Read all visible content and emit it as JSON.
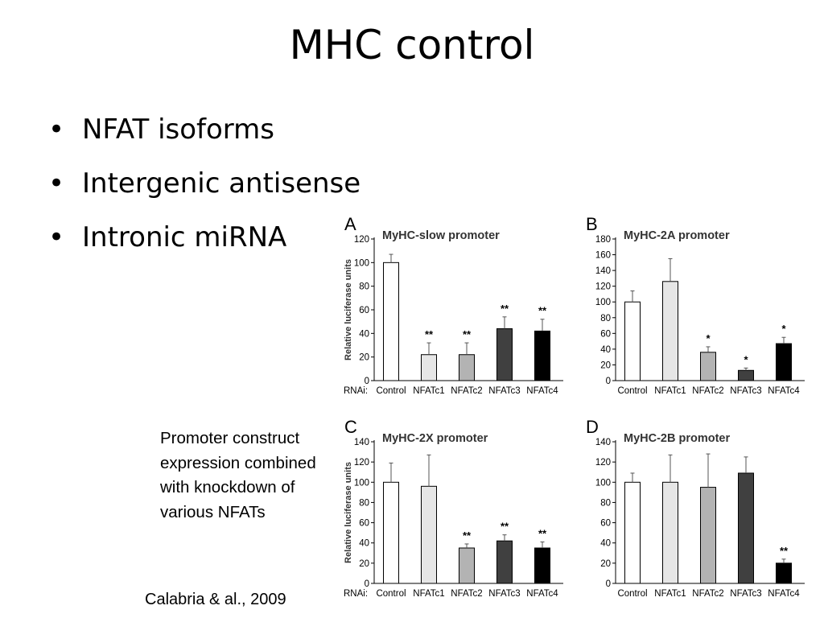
{
  "slide": {
    "title": "MHC control",
    "bullets": [
      "NFAT isoforms",
      "Intergenic antisense",
      "Intronic miRNA"
    ],
    "caption": "Promoter construct expression combined with knockdown of various NFATs",
    "citation": "Calabria & al., 2009"
  },
  "colors": {
    "Control": "#ffffff",
    "NFATc1": "#e6e6e6",
    "NFATc2": "#b3b3b3",
    "NFATc3": "#404040",
    "NFATc4": "#000000"
  },
  "chart_data": [
    {
      "type": "bar",
      "panel_letter": "A",
      "title": "MyHC-slow promoter",
      "ylabel": "Relative luciferase units",
      "x_prefix": "RNAi:",
      "categories": [
        "Control",
        "NFATc1",
        "NFATc2",
        "NFATc3",
        "NFATc4"
      ],
      "values": [
        100,
        22,
        22,
        44,
        42
      ],
      "errors": [
        7,
        10,
        10,
        10,
        10
      ],
      "significance": [
        "",
        "**",
        "**",
        "**",
        "**"
      ],
      "ylim": [
        0,
        120
      ],
      "yticks": [
        0,
        20,
        40,
        60,
        80,
        100,
        120
      ]
    },
    {
      "type": "bar",
      "panel_letter": "B",
      "title": "MyHC-2A promoter",
      "ylabel": "",
      "x_prefix": "",
      "categories": [
        "Control",
        "NFATc1",
        "NFATc2",
        "NFATc3",
        "NFATc4"
      ],
      "values": [
        100,
        126,
        36,
        13,
        47
      ],
      "errors": [
        14,
        29,
        7,
        3,
        8
      ],
      "significance": [
        "",
        "",
        "*",
        "*",
        "*"
      ],
      "ylim": [
        0,
        180
      ],
      "yticks": [
        0,
        20,
        40,
        60,
        80,
        100,
        120,
        140,
        160,
        180
      ]
    },
    {
      "type": "bar",
      "panel_letter": "C",
      "title": "MyHC-2X promoter",
      "ylabel": "Relative luciferase units",
      "x_prefix": "RNAi:",
      "categories": [
        "Control",
        "NFATc1",
        "NFATc2",
        "NFATc3",
        "NFATc4"
      ],
      "values": [
        100,
        96,
        35,
        42,
        35
      ],
      "errors": [
        19,
        31,
        4,
        6,
        6
      ],
      "significance": [
        "",
        "",
        "**",
        "**",
        "**"
      ],
      "ylim": [
        0,
        140
      ],
      "yticks": [
        0,
        20,
        40,
        60,
        80,
        100,
        120,
        140
      ]
    },
    {
      "type": "bar",
      "panel_letter": "D",
      "title": "MyHC-2B promoter",
      "ylabel": "",
      "x_prefix": "",
      "categories": [
        "Control",
        "NFATc1",
        "NFATc2",
        "NFATc3",
        "NFATc4"
      ],
      "values": [
        100,
        100,
        95,
        109,
        20
      ],
      "errors": [
        9,
        27,
        33,
        16,
        4
      ],
      "significance": [
        "",
        "",
        "",
        "",
        "**"
      ],
      "ylim": [
        0,
        140
      ],
      "yticks": [
        0,
        20,
        40,
        60,
        80,
        100,
        120,
        140
      ]
    }
  ]
}
